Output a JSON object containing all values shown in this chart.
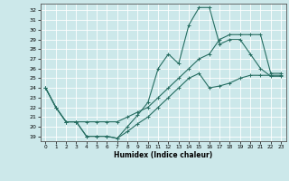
{
  "xlabel": "Humidex (Indice chaleur)",
  "xlim": [
    -0.5,
    23.5
  ],
  "ylim": [
    18.5,
    32.7
  ],
  "yticks": [
    19,
    20,
    21,
    22,
    23,
    24,
    25,
    26,
    27,
    28,
    29,
    30,
    31,
    32
  ],
  "xticks": [
    0,
    1,
    2,
    3,
    4,
    5,
    6,
    7,
    8,
    9,
    10,
    11,
    12,
    13,
    14,
    15,
    16,
    17,
    18,
    19,
    20,
    21,
    22,
    23
  ],
  "line_color": "#276e62",
  "bg_color": "#cce8ea",
  "grid_color": "#ffffff",
  "line1_x": [
    0,
    1,
    2,
    3,
    4,
    5,
    6,
    7,
    8,
    9,
    10,
    11,
    12,
    13,
    14,
    15,
    16,
    17,
    18,
    19,
    20,
    21,
    22,
    23
  ],
  "line1_y": [
    24,
    22,
    20.5,
    20.5,
    19,
    19,
    19,
    18.8,
    20,
    21.2,
    22.5,
    26,
    27.5,
    26.5,
    30.5,
    32.3,
    32.3,
    28.5,
    29,
    29,
    27.5,
    26,
    25.2,
    25.2
  ],
  "line2_x": [
    0,
    1,
    2,
    3,
    4,
    5,
    6,
    7,
    8,
    9,
    10,
    11,
    12,
    13,
    14,
    15,
    16,
    17,
    18,
    19,
    20,
    21,
    22,
    23
  ],
  "line2_y": [
    24,
    22,
    20.5,
    20.5,
    20.5,
    20.5,
    20.5,
    20.5,
    21,
    21.5,
    22,
    23,
    24,
    25,
    26,
    27,
    27.5,
    29,
    29.5,
    29.5,
    29.5,
    29.5,
    25.5,
    25.5
  ],
  "line3_x": [
    0,
    1,
    2,
    3,
    4,
    5,
    6,
    7,
    8,
    9,
    10,
    11,
    12,
    13,
    14,
    15,
    16,
    17,
    18,
    19,
    20,
    21,
    22,
    23
  ],
  "line3_y": [
    24,
    22,
    20.5,
    20.5,
    19,
    19,
    19,
    18.8,
    19.5,
    20.3,
    21,
    22,
    23,
    24,
    25,
    25.5,
    24,
    24.2,
    24.5,
    25,
    25.3,
    25.3,
    25.3,
    25.3
  ]
}
